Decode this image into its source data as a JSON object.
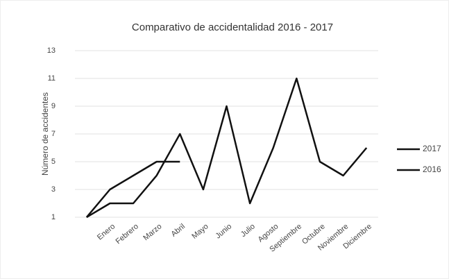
{
  "chart_data": {
    "type": "line",
    "title": "Comparativo de accidentalidad 2016 - 2017",
    "y_label": "Número de accidentes",
    "categories": [
      null,
      "Enero",
      "Febrero",
      "Marzo",
      "Abril",
      "Mayo",
      "Junio",
      "Julio",
      "Agosto",
      "Septiembre",
      "Octubre",
      "Noviembre",
      "Diciembre"
    ],
    "series": [
      {
        "name": "2017",
        "color": "#111111",
        "values": [
          1,
          3,
          4,
          5,
          5,
          null,
          null,
          null,
          null,
          null,
          null,
          null,
          null
        ]
      },
      {
        "name": "2016",
        "color": "#111111",
        "values": [
          1,
          2,
          2,
          4,
          7,
          3,
          9,
          2,
          6,
          11,
          5,
          4,
          6
        ]
      }
    ],
    "ylim": [
      1,
      13
    ],
    "yticks": [
      1,
      3,
      5,
      7,
      9,
      11,
      13
    ],
    "grid": true,
    "legend": "right"
  }
}
